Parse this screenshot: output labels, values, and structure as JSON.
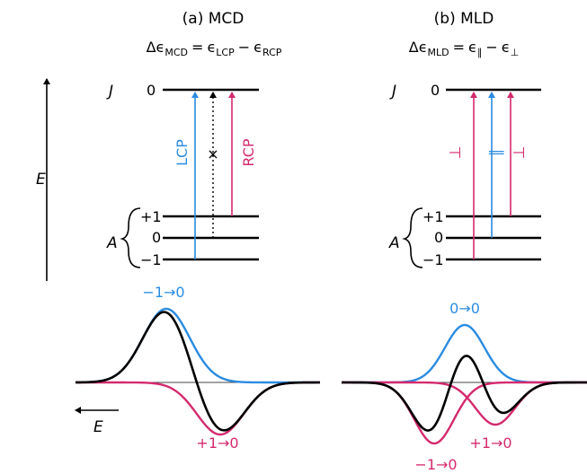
{
  "colors": {
    "blue": "#2a8be0",
    "magenta": "#d42a6e",
    "black": "#000000",
    "axis": "#444444"
  },
  "energy_axis": {
    "label": "E"
  },
  "mcd": {
    "panel_title": "(a) MCD",
    "equation": {
      "lhs": "Δϵ",
      "lhs_sub": "MCD",
      "eq": "=",
      "t1": "ϵ",
      "t1_sub": "LCP",
      "minus": "−",
      "t2": "ϵ",
      "t2_sub": "RCP"
    },
    "upper_state": "J",
    "lower_state": "A",
    "upper_level": "0",
    "lower_levels": [
      "+1",
      "0",
      "−1"
    ],
    "arrow_labels": {
      "lcp": "LCP",
      "rcp": "RCP",
      "forbidden": "×"
    },
    "band_labels": {
      "blue": "−1→0",
      "magenta": "+1→0"
    },
    "spectrum_axis_label": "E"
  },
  "mld": {
    "panel_title": "(b) MLD",
    "equation": {
      "lhs": "Δϵ",
      "lhs_sub": "MLD",
      "eq": "=",
      "t1": "ϵ",
      "t1_sub": "∥",
      "minus": "−",
      "t2": "ϵ",
      "t2_sub": "⊥"
    },
    "upper_state": "J",
    "lower_state": "A",
    "upper_level": "0",
    "lower_levels": [
      "+1",
      "0",
      "−1"
    ],
    "arrow_labels": {
      "perp_left": "⊥",
      "parallel": "∥",
      "perp_right": "⊥"
    },
    "band_labels": {
      "blue": "0→0",
      "magenta_right": "+1→0",
      "magenta_left": "−1→0"
    }
  }
}
